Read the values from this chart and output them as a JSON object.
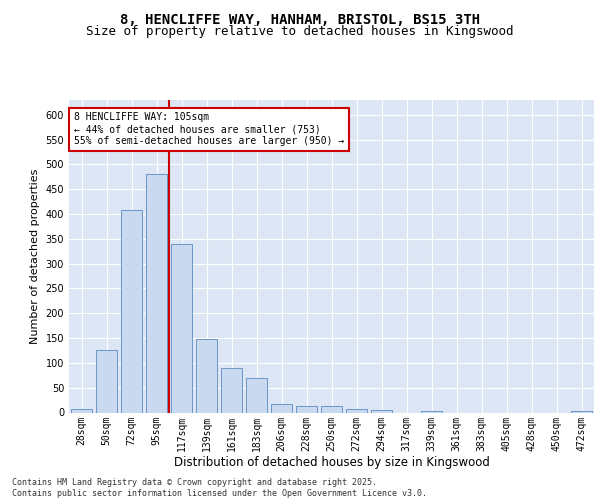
{
  "title_line1": "8, HENCLIFFE WAY, HANHAM, BRISTOL, BS15 3TH",
  "title_line2": "Size of property relative to detached houses in Kingswood",
  "xlabel": "Distribution of detached houses by size in Kingswood",
  "ylabel": "Number of detached properties",
  "categories": [
    "28sqm",
    "50sqm",
    "72sqm",
    "95sqm",
    "117sqm",
    "139sqm",
    "161sqm",
    "183sqm",
    "206sqm",
    "228sqm",
    "250sqm",
    "272sqm",
    "294sqm",
    "317sqm",
    "339sqm",
    "361sqm",
    "383sqm",
    "405sqm",
    "428sqm",
    "450sqm",
    "472sqm"
  ],
  "values": [
    8,
    127,
    409,
    481,
    340,
    148,
    90,
    70,
    17,
    13,
    13,
    8,
    5,
    0,
    3,
    0,
    0,
    0,
    0,
    0,
    4
  ],
  "bar_color": "#c9d9f0",
  "bar_edge_color": "#6b96c8",
  "vline_x": 3.5,
  "vline_color": "#cc0000",
  "annotation_text": "8 HENCLIFFE WAY: 105sqm\n← 44% of detached houses are smaller (753)\n55% of semi-detached houses are larger (950) →",
  "annotation_box_color": "#ffffff",
  "annotation_box_edge": "#cc0000",
  "ylim": [
    0,
    630
  ],
  "yticks": [
    0,
    50,
    100,
    150,
    200,
    250,
    300,
    350,
    400,
    450,
    500,
    550,
    600
  ],
  "background_color": "#dce6f5",
  "footer_text": "Contains HM Land Registry data © Crown copyright and database right 2025.\nContains public sector information licensed under the Open Government Licence v3.0.",
  "title_fontsize": 10,
  "subtitle_fontsize": 9,
  "axis_label_fontsize": 8,
  "tick_fontsize": 7,
  "annotation_fontsize": 7,
  "footer_fontsize": 6
}
